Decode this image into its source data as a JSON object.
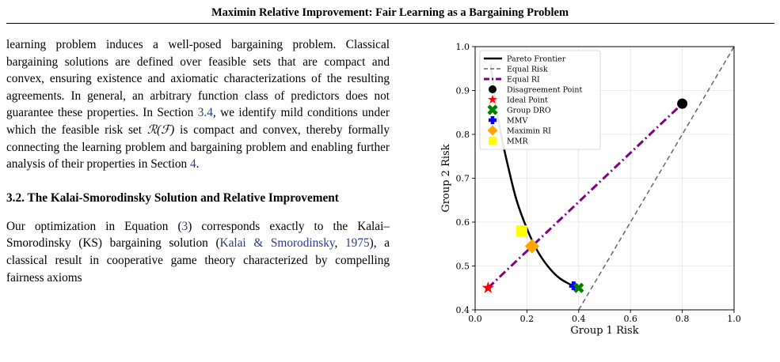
{
  "header": {
    "running_title": "Maximin Relative Improvement: Fair Learning as a Bargaining Problem"
  },
  "left": {
    "p1": [
      "learning problem induces a well-posed bargaining problem. Classical bargaining solutions are defined over feasible sets that are compact and convex, ensuring existence and axiomatic characterizations of the resulting agreements. In general, an arbitrary function class of predictors does not guarantee these properties. In Section ",
      "3.4",
      ", we identify mild conditions under which the feasible risk set ",
      "ℛ(ℱ)",
      " is compact and convex, thereby formally connecting the learning problem and bargaining problem and enabling further analysis of their properties in Section ",
      "4",
      "."
    ],
    "section_heading": "3.2. The Kalai-Smorodinsky Solution and Relative Improvement",
    "p2": [
      "Our optimization in Equation (",
      "3",
      ") corresponds exactly to the Kalai–Smorodinsky (KS) bargaining solution (",
      "Kalai & Smorodinsky",
      ", ",
      "1975",
      "), a classical result in cooperative game theory characterized by compelling fairness axioms"
    ]
  },
  "chart_data": {
    "type": "line",
    "xlabel": "Group 1 Risk",
    "ylabel": "Group 2 Risk",
    "xlim": [
      0.0,
      1.0
    ],
    "ylim": [
      0.4,
      1.0
    ],
    "x_ticks": [
      "0.0",
      "0.2",
      "0.4",
      "0.6",
      "0.8",
      "1.0"
    ],
    "y_ticks": [
      "0.4",
      "0.5",
      "0.6",
      "0.7",
      "0.8",
      "0.9",
      "1.0"
    ],
    "grid": true,
    "legend_position": "top-left",
    "series": [
      {
        "name": "Pareto Frontier",
        "kind": "line",
        "style": "solid",
        "color": "#000000",
        "points": [
          [
            0.06,
            0.96
          ],
          [
            0.08,
            0.87
          ],
          [
            0.1,
            0.8
          ],
          [
            0.13,
            0.72
          ],
          [
            0.16,
            0.65
          ],
          [
            0.2,
            0.585
          ],
          [
            0.24,
            0.535
          ],
          [
            0.28,
            0.5
          ],
          [
            0.32,
            0.475
          ],
          [
            0.36,
            0.46
          ],
          [
            0.4,
            0.45
          ]
        ]
      },
      {
        "name": "Equal Risk",
        "kind": "line",
        "style": "dashed",
        "color": "#666666",
        "points": [
          [
            0.4,
            0.4
          ],
          [
            1.0,
            1.0
          ]
        ]
      },
      {
        "name": "Equal RI",
        "kind": "line",
        "style": "dashdot",
        "color": "#800080",
        "points": [
          [
            0.05,
            0.45
          ],
          [
            0.8,
            0.87
          ]
        ]
      },
      {
        "name": "Disagreement Point",
        "kind": "marker",
        "marker": "circle",
        "color": "#000000",
        "points": [
          [
            0.8,
            0.87
          ]
        ]
      },
      {
        "name": "Ideal Point",
        "kind": "marker",
        "marker": "star",
        "color": "#ff0000",
        "points": [
          [
            0.05,
            0.45
          ]
        ]
      },
      {
        "name": "Group DRO",
        "kind": "marker",
        "marker": "x",
        "color": "#008000",
        "points": [
          [
            0.4,
            0.45
          ]
        ]
      },
      {
        "name": "MMV",
        "kind": "marker",
        "marker": "plus",
        "color": "#0000ff",
        "points": [
          [
            0.38,
            0.455
          ]
        ]
      },
      {
        "name": "Maximin RI",
        "kind": "marker",
        "marker": "diamond",
        "color": "#ffa500",
        "points": [
          [
            0.22,
            0.545
          ]
        ]
      },
      {
        "name": "MMR",
        "kind": "marker",
        "marker": "square",
        "color": "#ffff00",
        "points": [
          [
            0.18,
            0.58
          ]
        ]
      }
    ]
  }
}
